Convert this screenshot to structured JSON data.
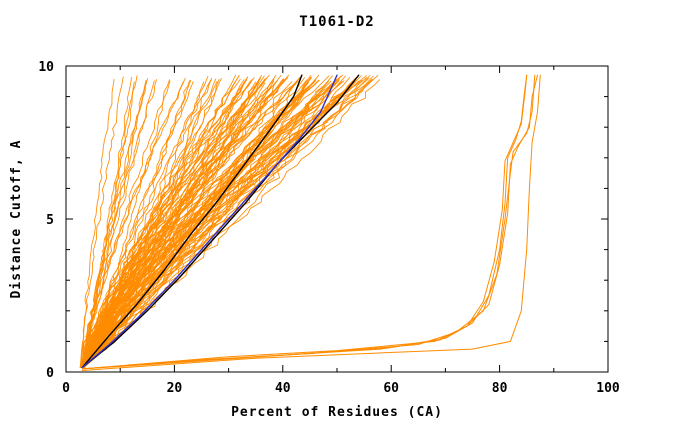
{
  "page": {
    "background": "#ffffff"
  },
  "chart_data": {
    "type": "line",
    "title": "T1061-D2",
    "xlabel": "Percent of Residues (CA)",
    "ylabel": "Distance Cutoff, A",
    "xlim": [
      0,
      100
    ],
    "ylim": [
      0,
      10
    ],
    "x_ticks": [
      0,
      20,
      40,
      60,
      80,
      100
    ],
    "x_minor_step": 10,
    "y_ticks": [
      0,
      5,
      10
    ],
    "y_minor_step": 1,
    "grid": false,
    "legend": "none",
    "colors": {
      "model_curves": "#ff8c00",
      "reference_curves": "#000000",
      "highlight_curve": "#3333cc",
      "axis": "#000000"
    },
    "seed": 42,
    "y_start": 0.15,
    "y_end": 9.7,
    "series": {
      "orange_model_groups": [
        {
          "name": "left-fan",
          "count": 30,
          "x_start": 3,
          "x_top_range": [
            8,
            33
          ],
          "exp_range": [
            0.85,
            1.3
          ]
        },
        {
          "name": "dense-mass",
          "count": 85,
          "x_start": 3,
          "x_top_range": [
            33,
            58
          ],
          "exp_range": [
            0.9,
            1.35
          ]
        }
      ],
      "orange_right_outliers": [
        {
          "points": [
            [
              3,
              0.1
            ],
            [
              20,
              0.3
            ],
            [
              40,
              0.55
            ],
            [
              60,
              0.8
            ],
            [
              70,
              1.1
            ],
            [
              75,
              1.6
            ],
            [
              78,
              2.5
            ],
            [
              80,
              4.0
            ],
            [
              81,
              5.5
            ],
            [
              81.5,
              7.0
            ],
            [
              83,
              7.6
            ],
            [
              84,
              8.2
            ],
            [
              84.5,
              9.0
            ],
            [
              85,
              9.7
            ]
          ]
        },
        {
          "points": [
            [
              3,
              0.1
            ],
            [
              25,
              0.4
            ],
            [
              45,
              0.6
            ],
            [
              65,
              0.9
            ],
            [
              72,
              1.3
            ],
            [
              77,
              2.0
            ],
            [
              79.5,
              3.2
            ],
            [
              81,
              5.0
            ],
            [
              82,
              6.5
            ],
            [
              82.5,
              7.2
            ],
            [
              85,
              7.8
            ],
            [
              86,
              8.5
            ],
            [
              86.5,
              9.7
            ]
          ]
        },
        {
          "points": [
            [
              3,
              0.1
            ],
            [
              30,
              0.5
            ],
            [
              50,
              0.7
            ],
            [
              68,
              1.0
            ],
            [
              74,
              1.5
            ],
            [
              78,
              2.2
            ],
            [
              80,
              3.5
            ],
            [
              81.5,
              5.2
            ],
            [
              82,
              6.8
            ],
            [
              83.5,
              7.4
            ],
            [
              85.5,
              8.0
            ],
            [
              86,
              9.0
            ],
            [
              87,
              9.7
            ]
          ]
        },
        {
          "points": [
            [
              3,
              0.05
            ],
            [
              35,
              0.45
            ],
            [
              55,
              0.6
            ],
            [
              75,
              0.75
            ],
            [
              82,
              1.0
            ],
            [
              84,
              2.0
            ],
            [
              85,
              4.0
            ],
            [
              85.5,
              6.0
            ],
            [
              86,
              7.5
            ],
            [
              87,
              8.5
            ],
            [
              87.5,
              9.7
            ]
          ]
        },
        {
          "points": [
            [
              3,
              0.1
            ],
            [
              15,
              0.25
            ],
            [
              35,
              0.5
            ],
            [
              58,
              0.75
            ],
            [
              69,
              1.05
            ],
            [
              74,
              1.5
            ],
            [
              77,
              2.3
            ],
            [
              79,
              3.6
            ],
            [
              80.5,
              5.3
            ],
            [
              81,
              6.9
            ],
            [
              82.5,
              7.5
            ],
            [
              84,
              8.1
            ],
            [
              84.8,
              9.3
            ],
            [
              85,
              9.7
            ]
          ]
        }
      ],
      "black_curves": [
        {
          "points": [
            [
              3,
              0.15
            ],
            [
              8,
              1.2
            ],
            [
              13,
              2.2
            ],
            [
              18,
              3.3
            ],
            [
              23,
              4.5
            ],
            [
              28,
              5.6
            ],
            [
              33,
              6.8
            ],
            [
              38,
              8.0
            ],
            [
              42,
              9.0
            ],
            [
              43.5,
              9.7
            ]
          ]
        },
        {
          "points": [
            [
              3,
              0.15
            ],
            [
              9,
              1.0
            ],
            [
              15,
              2.0
            ],
            [
              21,
              3.1
            ],
            [
              27,
              4.3
            ],
            [
              33,
              5.5
            ],
            [
              39,
              6.8
            ],
            [
              45,
              7.9
            ],
            [
              50,
              8.8
            ],
            [
              54,
              9.7
            ]
          ]
        }
      ],
      "blue_curve": {
        "points": [
          [
            3,
            0.15
          ],
          [
            8,
            0.9
          ],
          [
            14,
            1.9
          ],
          [
            20,
            3.0
          ],
          [
            26,
            4.2
          ],
          [
            32,
            5.4
          ],
          [
            38,
            6.6
          ],
          [
            43,
            7.6
          ],
          [
            47,
            8.5
          ],
          [
            50,
            9.7
          ]
        ]
      }
    }
  }
}
